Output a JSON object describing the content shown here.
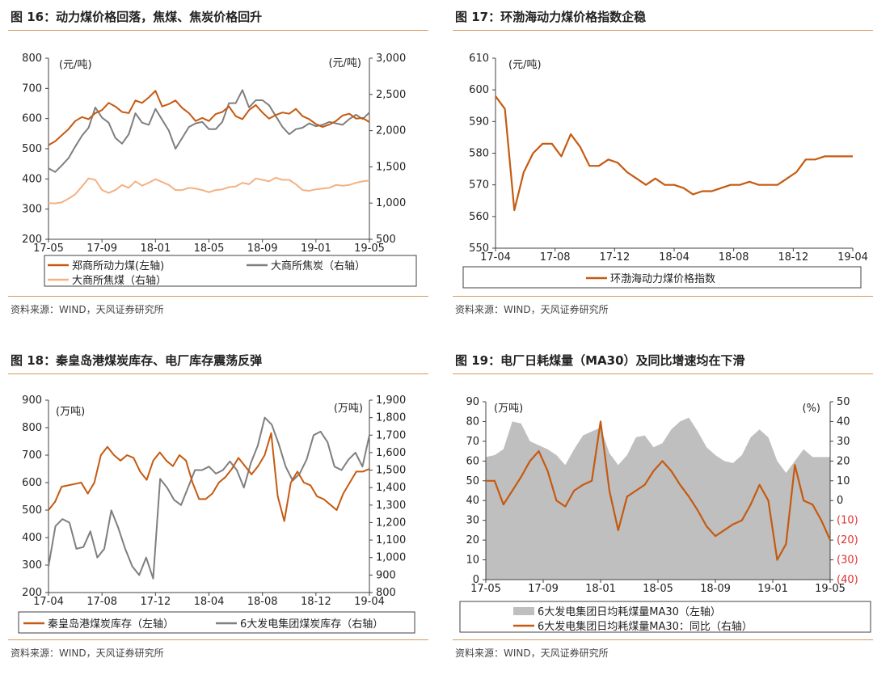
{
  "source_text": "资料来源：WIND，天风证券研究所",
  "colors": {
    "orange": "#c55a11",
    "gray": "#7f7f7f",
    "salmon": "#f4b183",
    "fill_gray": "#bfbfbf",
    "red_tick": "#e03030",
    "rule": "#d59a5e"
  },
  "panels": [
    {
      "title": "图 16：动力煤价格回落，焦煤、焦炭价格回升"
    },
    {
      "title": "图 17：环渤海动力煤价格指数企稳"
    },
    {
      "title": "图 18：秦皇岛港煤炭库存、电厂库存震荡反弹"
    },
    {
      "title": "图 19：电厂日耗煤量（MA30）及同比增速均在下滑"
    }
  ],
  "chart_data": [
    {
      "type": "line",
      "unit_left": "(元/吨)",
      "unit_right": "(元/吨)",
      "x_ticks": [
        "17-05",
        "17-09",
        "18-01",
        "18-05",
        "18-09",
        "19-01",
        "19-05"
      ],
      "y_left_ticks": [
        "200",
        "300",
        "400",
        "500",
        "600",
        "700",
        "800"
      ],
      "y_right_ticks": [
        "500",
        "1,000",
        "1,500",
        "2,000",
        "2,500",
        "3,000"
      ],
      "ylim_left": [
        200,
        800
      ],
      "ylim_right": [
        500,
        3000
      ],
      "series": [
        {
          "name": "郑商所动力煤(左轴)",
          "axis": "left",
          "color": "#c55a11",
          "values": [
            512,
            525,
            545,
            565,
            592,
            605,
            598,
            618,
            628,
            652,
            640,
            622,
            618,
            660,
            652,
            670,
            692,
            640,
            648,
            660,
            635,
            618,
            592,
            602,
            592,
            615,
            622,
            640,
            608,
            598,
            628,
            645,
            620,
            600,
            612,
            620,
            616,
            632,
            608,
            598,
            582,
            572,
            580,
            592,
            610,
            616,
            600,
            602,
            588
          ]
        },
        {
          "name": "大商所焦炭（右轴）",
          "axis": "right",
          "color": "#7f7f7f",
          "values": [
            1480,
            1430,
            1520,
            1620,
            1780,
            1930,
            2040,
            2320,
            2180,
            2110,
            1900,
            1820,
            1950,
            2240,
            2110,
            2080,
            2300,
            2150,
            2000,
            1750,
            1900,
            2050,
            2100,
            2120,
            2020,
            2020,
            2120,
            2380,
            2380,
            2560,
            2320,
            2420,
            2420,
            2350,
            2200,
            2050,
            1950,
            2020,
            2040,
            2100,
            2060,
            2080,
            2120,
            2100,
            2080,
            2160,
            2220,
            2160,
            2250
          ]
        },
        {
          "name": "大商所焦煤（右轴）",
          "axis": "right",
          "color": "#f4b183",
          "values": [
            1000,
            995,
            1010,
            1060,
            1120,
            1230,
            1340,
            1320,
            1180,
            1140,
            1180,
            1250,
            1210,
            1300,
            1240,
            1280,
            1330,
            1290,
            1250,
            1180,
            1180,
            1210,
            1200,
            1180,
            1150,
            1180,
            1190,
            1220,
            1230,
            1280,
            1260,
            1340,
            1320,
            1300,
            1350,
            1320,
            1320,
            1260,
            1180,
            1170,
            1190,
            1200,
            1210,
            1250,
            1240,
            1250,
            1280,
            1300,
            1310
          ]
        }
      ]
    },
    {
      "type": "line",
      "unit_left": "(元/吨)",
      "x_ticks": [
        "17-04",
        "17-08",
        "17-12",
        "18-04",
        "18-08",
        "18-12",
        "19-04"
      ],
      "y_ticks": [
        "550",
        "560",
        "570",
        "580",
        "590",
        "600",
        "610"
      ],
      "ylim": [
        550,
        610
      ],
      "series": [
        {
          "name": "环渤海动力煤价格指数",
          "color": "#c55a11",
          "values": [
            598,
            594,
            562,
            574,
            580,
            583,
            583,
            579,
            586,
            582,
            576,
            576,
            578,
            577,
            574,
            572,
            570,
            572,
            570,
            570,
            569,
            567,
            568,
            568,
            569,
            570,
            570,
            571,
            570,
            570,
            570,
            572,
            574,
            578,
            578,
            579,
            579,
            579,
            579
          ]
        }
      ]
    },
    {
      "type": "line",
      "unit_left": "(万吨)",
      "unit_right": "(万吨)",
      "x_ticks": [
        "17-04",
        "17-08",
        "17-12",
        "18-04",
        "18-08",
        "18-12",
        "19-04"
      ],
      "y_left_ticks": [
        "200",
        "300",
        "400",
        "500",
        "600",
        "700",
        "800",
        "900"
      ],
      "y_right_ticks": [
        "800",
        "900",
        "1,000",
        "1,100",
        "1,200",
        "1,300",
        "1,400",
        "1,500",
        "1,600",
        "1,700",
        "1,800",
        "1,900"
      ],
      "ylim_left": [
        200,
        900
      ],
      "ylim_right": [
        800,
        1900
      ],
      "series": [
        {
          "name": "秦皇岛港煤炭库存（左轴）",
          "axis": "left",
          "color": "#c55a11",
          "values": [
            500,
            530,
            585,
            590,
            595,
            600,
            560,
            600,
            700,
            730,
            700,
            680,
            700,
            690,
            640,
            610,
            680,
            710,
            680,
            660,
            700,
            680,
            600,
            540,
            540,
            560,
            600,
            620,
            650,
            690,
            660,
            630,
            660,
            700,
            780,
            550,
            460,
            600,
            640,
            600,
            590,
            550,
            540,
            520,
            500,
            560,
            600,
            640,
            640,
            650
          ]
        },
        {
          "name": "6大发电集团煤炭库存（右轴）",
          "axis": "right",
          "color": "#7f7f7f",
          "values": [
            950,
            1180,
            1220,
            1200,
            1050,
            1060,
            1150,
            1000,
            1050,
            1270,
            1170,
            1050,
            950,
            900,
            1000,
            880,
            1450,
            1400,
            1330,
            1300,
            1400,
            1500,
            1500,
            1520,
            1480,
            1500,
            1550,
            1500,
            1400,
            1540,
            1640,
            1800,
            1760,
            1650,
            1520,
            1440,
            1480,
            1560,
            1700,
            1720,
            1660,
            1520,
            1500,
            1560,
            1600,
            1520,
            1700
          ]
        }
      ]
    },
    {
      "type": "area+line",
      "unit_left": "(万吨)",
      "unit_right": "(%)",
      "x_ticks": [
        "17-05",
        "17-09",
        "18-01",
        "18-05",
        "18-09",
        "19-01",
        "19-05"
      ],
      "y_left_ticks": [
        "0",
        "10",
        "20",
        "30",
        "40",
        "50",
        "60",
        "70",
        "80",
        "90"
      ],
      "y_right_ticks": [
        "(40)",
        "(30)",
        "(20)",
        "(10)",
        "0",
        "10",
        "20",
        "30",
        "40",
        "50"
      ],
      "ylim_left": [
        0,
        90
      ],
      "ylim_right": [
        -40,
        50
      ],
      "series": [
        {
          "name": "6大发电集团日均耗煤量MA30（左轴）",
          "axis": "left",
          "type": "area",
          "color": "#bfbfbf",
          "values": [
            62,
            63,
            66,
            80,
            79,
            70,
            68,
            66,
            63,
            58,
            66,
            73,
            75,
            77,
            64,
            58,
            63,
            72,
            73,
            67,
            69,
            76,
            80,
            82,
            75,
            67,
            63,
            60,
            59,
            63,
            72,
            76,
            72,
            60,
            54,
            60,
            66,
            62,
            62,
            62
          ]
        },
        {
          "name": "6大发电集团日均耗煤量MA30：同比（右轴）",
          "axis": "right",
          "type": "line",
          "color": "#c55a11",
          "values": [
            10,
            10,
            -2,
            5,
            12,
            20,
            25,
            15,
            0,
            -3,
            5,
            8,
            10,
            40,
            5,
            -15,
            2,
            5,
            8,
            15,
            20,
            15,
            8,
            2,
            -5,
            -13,
            -18,
            -15,
            -12,
            -10,
            -2,
            8,
            0,
            -30,
            -22,
            18,
            0,
            -2,
            -10,
            -20
          ]
        }
      ]
    }
  ],
  "legends": [
    [
      "郑商所动力煤(左轴)",
      "大商所焦炭（右轴）",
      "大商所焦煤（右轴）"
    ],
    [
      "环渤海动力煤价格指数"
    ],
    [
      "秦皇岛港煤炭库存（左轴）",
      "6大发电集团煤炭库存（右轴）"
    ],
    [
      "6大发电集团日均耗煤量MA30（左轴）",
      "6大发电集团日均耗煤量MA30：同比（右轴）"
    ]
  ]
}
